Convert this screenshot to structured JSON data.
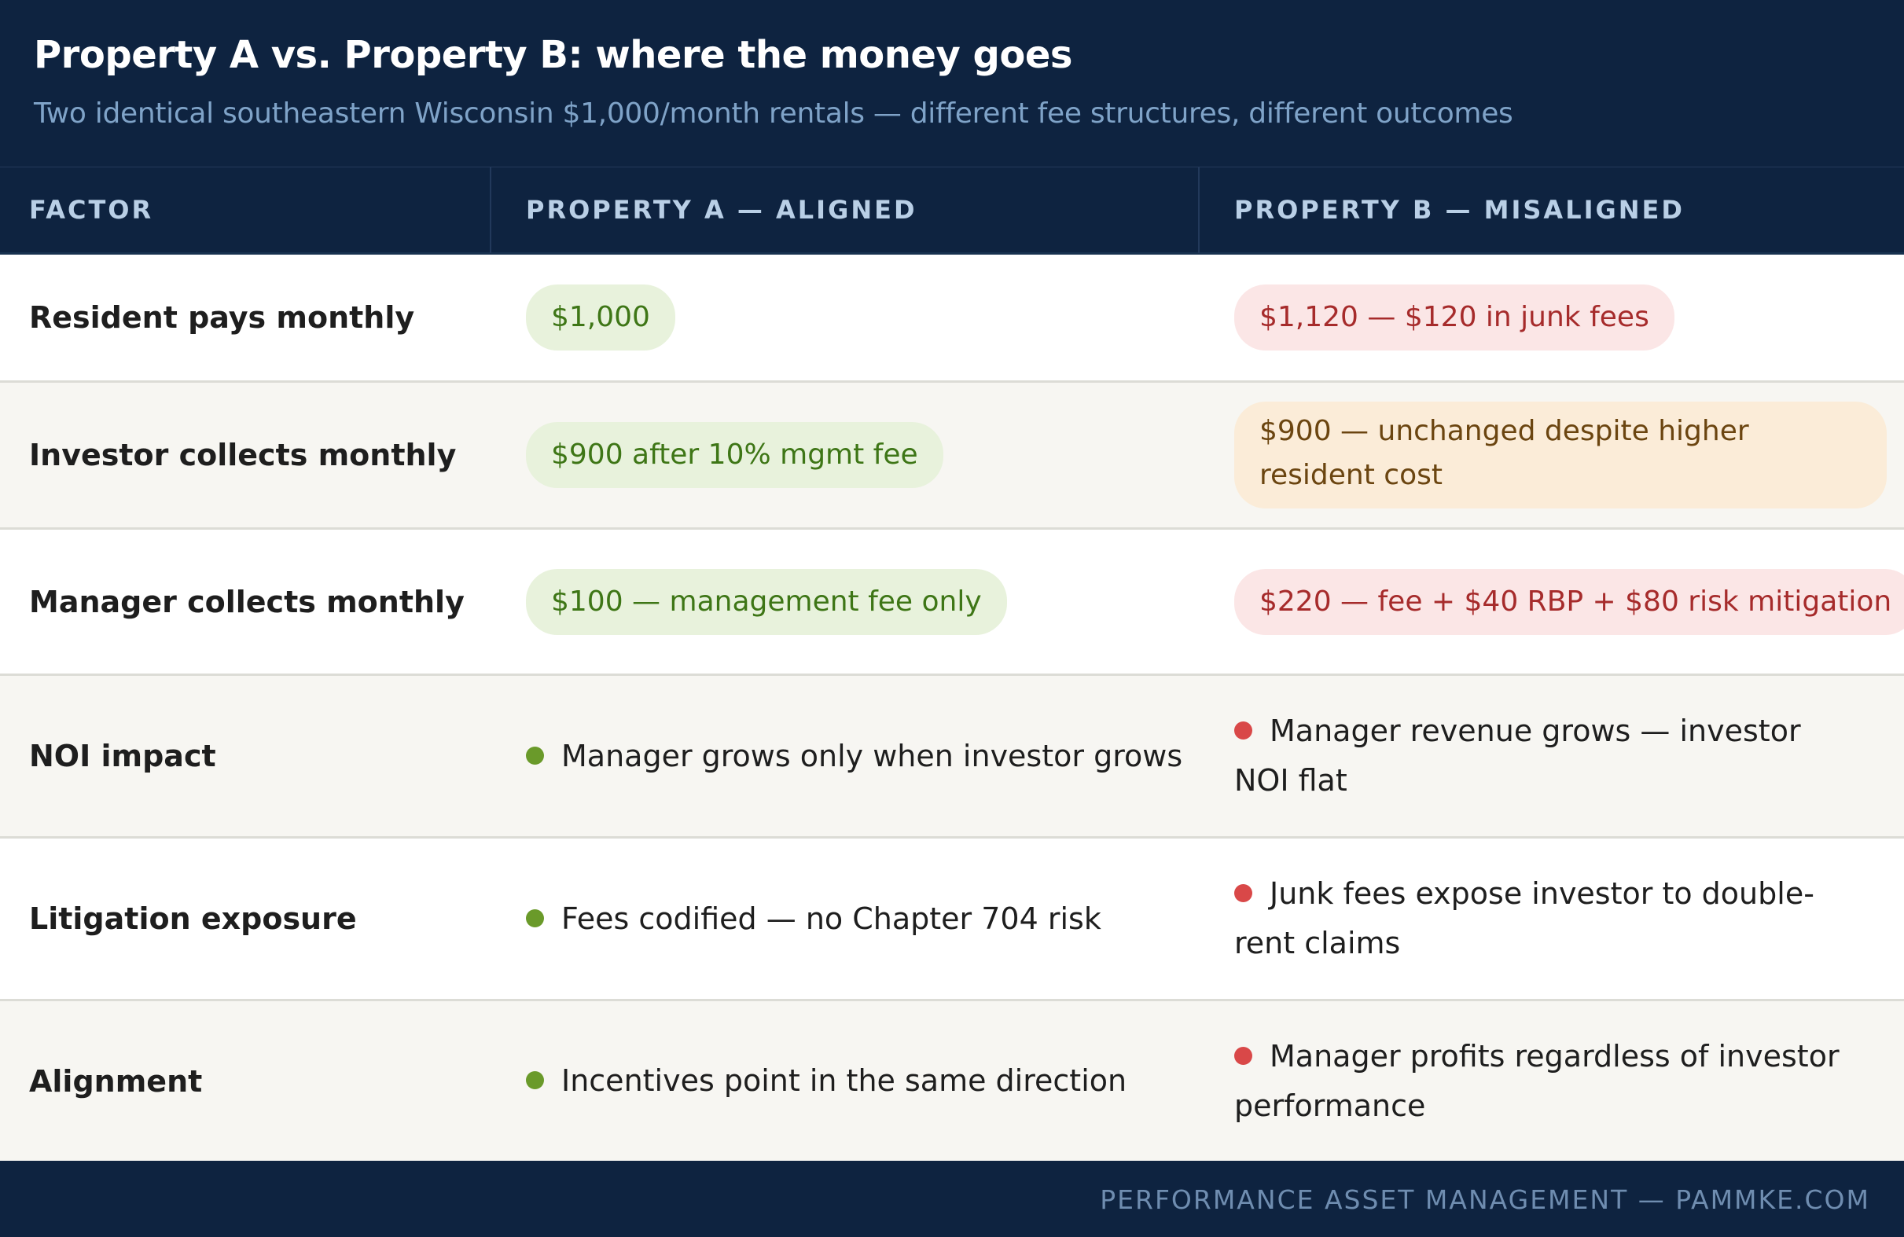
{
  "header": {
    "title": "Property A vs. Property B: where the money goes",
    "subtitle": "Two identical southeastern Wisconsin $1,000/month rentals — different fee structures, different outcomes"
  },
  "columns": {
    "factor": "FACTOR",
    "a": "PROPERTY A — ALIGNED",
    "b": "PROPERTY B — MISALIGNED"
  },
  "rows": [
    {
      "factor": "Resident pays monthly",
      "a": "$1,000",
      "b": "$1,120 — $120 in junk fees"
    },
    {
      "factor": "Investor collects monthly",
      "a": "$900 after 10% mgmt fee",
      "b": "$900 — unchanged despite higher resident cost"
    },
    {
      "factor": "Manager collects monthly",
      "a": "$100 — management fee only",
      "b": "$220 — fee + $40 RBP + $80 risk mitigation"
    },
    {
      "factor": "NOI impact",
      "a": "Manager grows only when investor grows",
      "b": "Manager revenue grows — investor NOI flat"
    },
    {
      "factor": "Litigation exposure",
      "a": "Fees codified — no Chapter 704 risk",
      "b": "Junk fees expose investor to double-rent claims"
    },
    {
      "factor": "Alignment",
      "a": "Incentives point in the same direction",
      "b": "Manager profits regardless of investor performance"
    }
  ],
  "footer": "PERFORMANCE ASSET MANAGEMENT — PAMMKE.COM",
  "colors": {
    "navy": "#0e2340",
    "good": "#3e7616",
    "bad": "#a62b2b",
    "warn": "#6b4510"
  }
}
